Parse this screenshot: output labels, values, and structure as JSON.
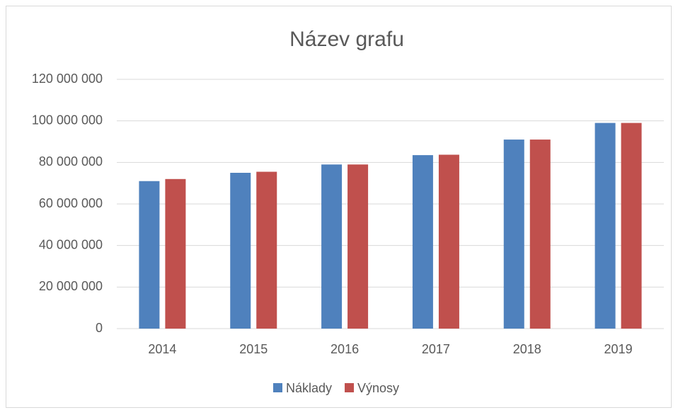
{
  "chart_data": {
    "type": "bar",
    "title": "Název grafu",
    "categories": [
      "2014",
      "2015",
      "2016",
      "2017",
      "2018",
      "2019"
    ],
    "series": [
      {
        "name": "Náklady",
        "color": "#4f81bd",
        "values": [
          71000000,
          75000000,
          79000000,
          83500000,
          91000000,
          99000000
        ]
      },
      {
        "name": "Výnosy",
        "color": "#c0504d",
        "values": [
          72000000,
          75500000,
          79000000,
          83700000,
          91000000,
          99000000
        ]
      }
    ],
    "ylim": [
      0,
      120000000
    ],
    "yticks": [
      0,
      {
        "value": 20000000,
        "label": "20 000 000"
      },
      {
        "value": 40000000,
        "label": "40 000 000"
      },
      {
        "value": 60000000,
        "label": "60 000 000"
      },
      {
        "value": 80000000,
        "label": "80 000 000"
      },
      {
        "value": 100000000,
        "label": "100 000 000"
      },
      {
        "value": 120000000,
        "label": "120 000 000"
      }
    ],
    "grid": true,
    "legend": "bottom"
  }
}
